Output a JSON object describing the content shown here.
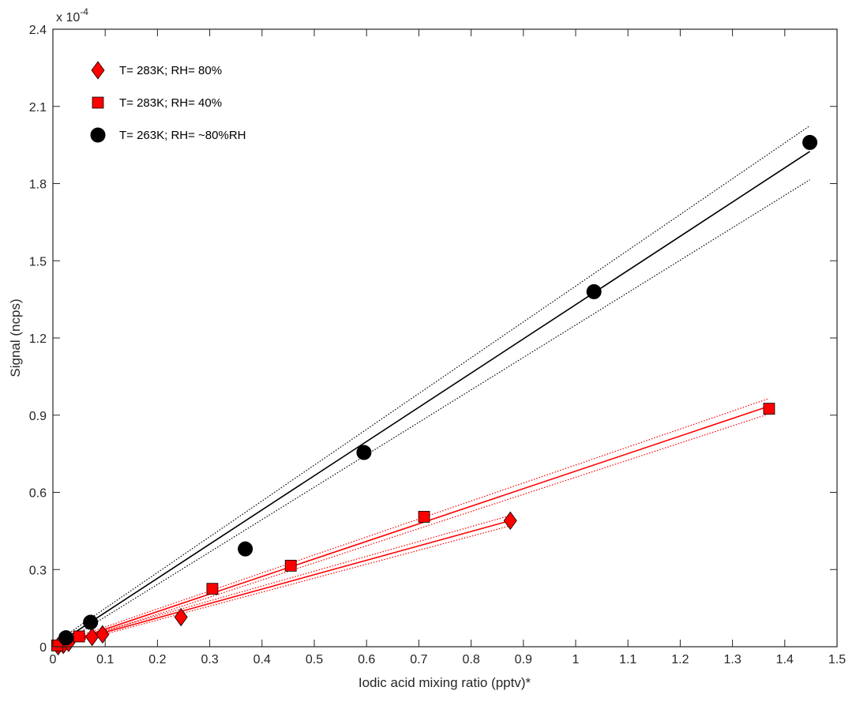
{
  "chart_data": {
    "type": "scatter",
    "xlabel": "Iodic acid mixing ratio (pptv)*",
    "ylabel": "Signal (ncps)",
    "exponent_base": "x 10",
    "exponent_power": "-4",
    "xlim": [
      0,
      1.5
    ],
    "ylim": [
      0,
      2.4
    ],
    "xticks": [
      "0",
      "0.1",
      "0.2",
      "0.3",
      "0.4",
      "0.5",
      "0.6",
      "0.7",
      "0.8",
      "0.9",
      "1",
      "1.1",
      "1.2",
      "1.3",
      "1.4",
      "1.5"
    ],
    "yticks": [
      "0",
      "0.3",
      "0.6",
      "0.9",
      "1.2",
      "1.5",
      "1.8",
      "2.1",
      "2.4"
    ],
    "grid": false,
    "legend_position": "top-left",
    "series": [
      {
        "name": "T= 283K; RH= 80%",
        "marker": "diamond",
        "color": "#ff0000",
        "x": [
          0.01,
          0.02,
          0.03,
          0.075,
          0.095,
          0.245,
          0.875
        ],
        "y": [
          0.002,
          0.007,
          0.015,
          0.038,
          0.048,
          0.115,
          0.49
        ],
        "fit_x": [
          0.0,
          0.875
        ],
        "fit_y": [
          0.0,
          0.49
        ],
        "ci_upper": [
          0.005,
          0.51
        ],
        "ci_lower": [
          -0.005,
          0.47
        ]
      },
      {
        "name": "T= 283K; RH= 40%",
        "marker": "square",
        "color": "#ff0000",
        "x": [
          0.008,
          0.05,
          0.305,
          0.455,
          0.71,
          1.37
        ],
        "y": [
          0.005,
          0.04,
          0.225,
          0.315,
          0.505,
          0.925
        ],
        "fit_x": [
          0.0,
          1.37
        ],
        "fit_y": [
          0.0,
          0.935
        ],
        "ci_upper": [
          0.007,
          0.965
        ],
        "ci_lower": [
          -0.007,
          0.905
        ]
      },
      {
        "name": "T= 263K; RH= ~80%RH",
        "marker": "circle",
        "color": "#000000",
        "x": [
          0.025,
          0.072,
          0.368,
          0.595,
          1.035,
          1.448
        ],
        "y": [
          0.035,
          0.095,
          0.38,
          0.755,
          1.38,
          1.96
        ],
        "fit_x": [
          0.0,
          1.448
        ],
        "fit_y": [
          0.0,
          1.925
        ],
        "ci_upper": [
          0.01,
          2.025
        ],
        "ci_lower": [
          -0.01,
          1.815
        ]
      }
    ]
  }
}
